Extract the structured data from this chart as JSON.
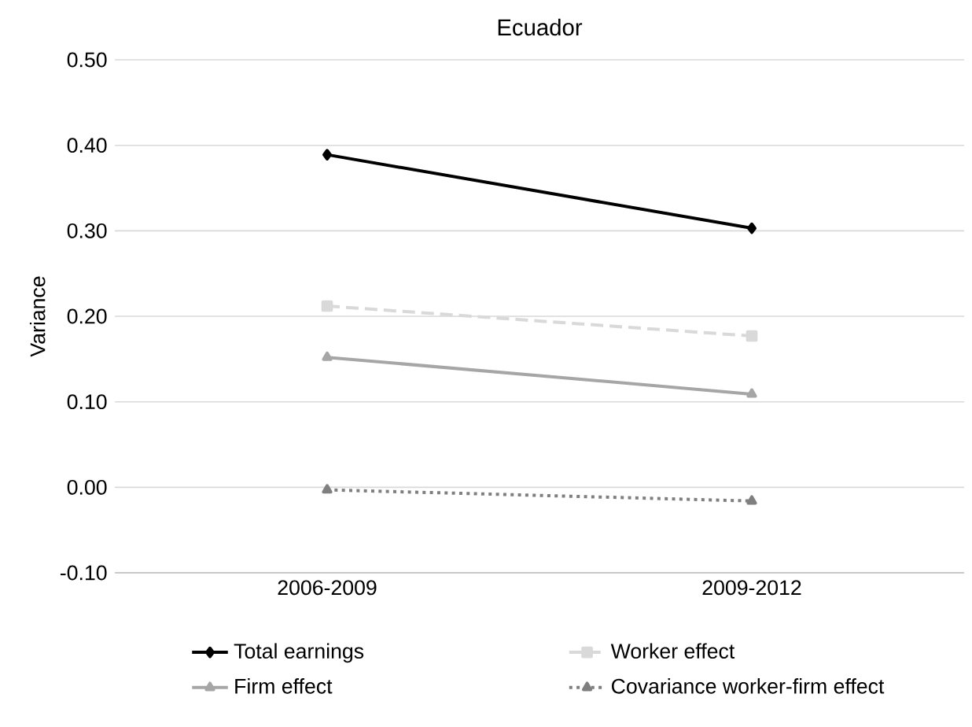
{
  "chart_data": {
    "type": "line",
    "title": "Ecuador",
    "ylabel": "Variance",
    "categories": [
      "2006-2009",
      "2009-2012"
    ],
    "series": [
      {
        "name": "Total earnings",
        "color": "#000000",
        "values": [
          0.389,
          0.303
        ],
        "marker": "diamond",
        "line_style": "solid"
      },
      {
        "name": "Worker effect",
        "color": "#d9d9d9",
        "values": [
          0.212,
          0.177
        ],
        "marker": "square",
        "line_style": "dashed"
      },
      {
        "name": "Firm effect",
        "color": "#a6a6a6",
        "values": [
          0.152,
          0.109
        ],
        "marker": "triangle",
        "line_style": "solid"
      },
      {
        "name": "Covariance worker-firm effect",
        "color": "#7f7f7f",
        "values": [
          -0.003,
          -0.016
        ],
        "marker": "triangle",
        "line_style": "dotted"
      }
    ],
    "ylim": [
      -0.1,
      0.5
    ],
    "yticks": [
      {
        "value": -0.1,
        "label": "-0.10"
      },
      {
        "value": 0,
        "label": "0.00"
      },
      {
        "value": 0.1,
        "label": "0.10"
      },
      {
        "value": 0.2,
        "label": "0.20"
      },
      {
        "value": 0.3,
        "label": "0.30"
      },
      {
        "value": 0.4,
        "label": "0.40"
      },
      {
        "value": 0.5,
        "label": "0.50"
      }
    ],
    "grid": "y",
    "legend": "bottom"
  }
}
